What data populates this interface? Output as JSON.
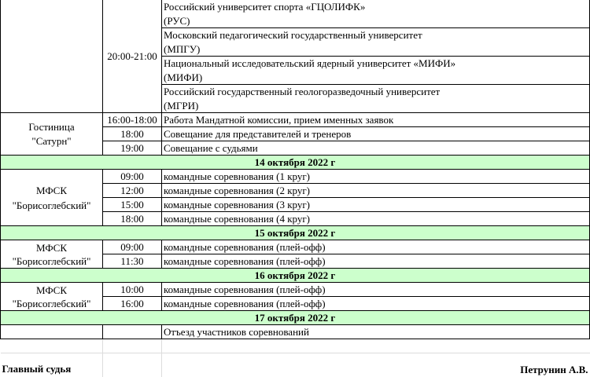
{
  "universities_block": {
    "time": "20:00-21:00",
    "items": [
      {
        "name": "Российский университет спорта «ГЦОЛИФК»",
        "abbr": "(РУС)"
      },
      {
        "name": "Московский педагогический государственный университет",
        "abbr": "(МПГУ)"
      },
      {
        "name": "Национальный исследовательский ядерный университет «МИФИ»",
        "abbr": "(МИФИ)"
      },
      {
        "name": "Российский государственный геологоразведочный университет",
        "abbr": "(МГРИ)"
      }
    ]
  },
  "hotel_block": {
    "venue_line1": "Гостиница",
    "venue_line2": "\"Сатурн\"",
    "rows": [
      {
        "time": "16:00-18:00",
        "event": "Работа Мандатной комиссии, прием именных заявок"
      },
      {
        "time": "18:00",
        "event": "Совещание для представителей и тренеров"
      },
      {
        "time": "19:00",
        "event": "Совещание с судьями"
      }
    ]
  },
  "days": [
    {
      "date": "14 октября 2022 г",
      "venue_line1": "МФСК",
      "venue_line2": "\"Борисоглебский\"",
      "rows": [
        {
          "time": "09:00",
          "event": "командные соревнования (1 круг)"
        },
        {
          "time": "12:00",
          "event": "командные соревнования (2 круг)"
        },
        {
          "time": "15:00",
          "event": "командные соревнования (3 круг)"
        },
        {
          "time": "18:00",
          "event": "командные соревнования (4 круг)"
        }
      ]
    },
    {
      "date": "15 октября 2022 г",
      "venue_line1": "МФСК",
      "venue_line2": "\"Борисоглебский\"",
      "rows": [
        {
          "time": "09:00",
          "event": "командные соревнования (плей-офф)"
        },
        {
          "time": "11:30",
          "event": "командные соревнования (плей-офф)"
        }
      ]
    },
    {
      "date": "16 октября 2022 г",
      "venue_line1": "МФСК",
      "venue_line2": "\"Борисоглебский\"",
      "rows": [
        {
          "time": "10:00",
          "event": "командные соревнования (плей-офф)"
        },
        {
          "time": "16:00",
          "event": "командные соревнования (плей-офф)"
        }
      ]
    },
    {
      "date": "17 октября 2022 г",
      "rows": [
        {
          "time": "",
          "event": "Отъезд участников соревнований"
        }
      ]
    }
  ],
  "footer": {
    "role": "Главный судья",
    "name": "Петрунин А.В."
  },
  "colors": {
    "day_header_bg": "#ccffcc"
  }
}
